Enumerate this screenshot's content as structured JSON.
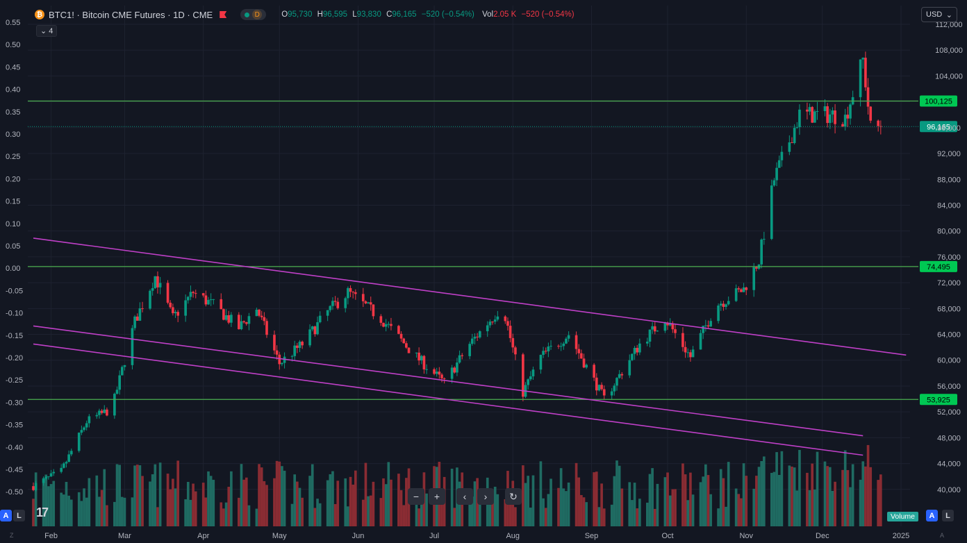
{
  "header": {
    "symbol": "BTC1! · Bitcoin CME Futures · 1D · CME",
    "interval_badge": "D",
    "ohlc": {
      "o_key": "O",
      "o": "95,730",
      "h_key": "H",
      "h": "96,595",
      "l_key": "L",
      "l": "93,830",
      "c_key": "C",
      "c": "96,165",
      "change": "−520 (−0.54%)"
    },
    "vol_key": "Vol",
    "vol": "2.05 K",
    "vol_change": "−520 (−0.54%)",
    "collapse_label": "4",
    "currency": "USD"
  },
  "bottom": {
    "tv_logo": "17",
    "volume_badge": "Volume",
    "a_label": "A",
    "l_label": "L",
    "z_label": "Z"
  },
  "colors": {
    "bg": "#131722",
    "up": "#089981",
    "down": "#f23645",
    "grid": "#1e2230",
    "hline": "#4caf50",
    "channel": "#c040c8"
  },
  "chart_data": {
    "type": "candlestick",
    "symbol": "BTC1!",
    "right_axis": {
      "ticks": [
        40000,
        44000,
        48000,
        52000,
        56000,
        60000,
        64000,
        68000,
        72000,
        76000,
        80000,
        84000,
        88000,
        92000,
        96000,
        100000,
        104000,
        108000,
        112000
      ],
      "labels": [
        "40,000",
        "44,000",
        "48,000",
        "52,000",
        "56,000",
        "60,000",
        "64,000",
        "68,000",
        "72,000",
        "76,000",
        "80,000",
        "84,000",
        "88,000",
        "92,000",
        "96,000",
        "",
        "104,000",
        "108,000",
        "112,000"
      ]
    },
    "left_axis": {
      "labels": [
        "0.55",
        "0.50",
        "0.45",
        "0.40",
        "0.35",
        "0.30",
        "0.25",
        "0.20",
        "0.15",
        "0.10",
        "0.05",
        "0.00",
        "-0.05",
        "-0.10",
        "-0.15",
        "-0.20",
        "-0.25",
        "-0.30",
        "-0.35",
        "-0.40",
        "-0.45",
        "-0.50"
      ]
    },
    "x_axis": {
      "labels": [
        "Feb",
        "Mar",
        "Apr",
        "May",
        "Jun",
        "Jul",
        "Aug",
        "Sep",
        "Oct",
        "Nov",
        "Dec",
        "2025"
      ]
    },
    "horizontal_levels": [
      {
        "value": 100125,
        "label": "100,125"
      },
      {
        "value": 74495,
        "label": "74,495"
      },
      {
        "value": 53925,
        "label": "53,925"
      }
    ],
    "last_price": {
      "value": 96165,
      "label": "96,165"
    },
    "channel_lines": [
      {
        "from": [
          "2024-01-25",
          78900
        ],
        "to": [
          "2025-01-03",
          60800
        ]
      },
      {
        "from": [
          "2024-01-25",
          65300
        ],
        "to": [
          "2024-12-17",
          48300
        ]
      },
      {
        "from": [
          "2024-01-25",
          62500
        ],
        "to": [
          "2024-12-17",
          45300
        ]
      }
    ],
    "closes_keypoints": [
      [
        "2024-01-25",
        40500
      ],
      [
        "2024-02-05",
        42800
      ],
      [
        "2024-02-15",
        50500
      ],
      [
        "2024-02-25",
        52500
      ],
      [
        "2024-03-05",
        66000
      ],
      [
        "2024-03-13",
        73000
      ],
      [
        "2024-03-20",
        66500
      ],
      [
        "2024-03-28",
        70500
      ],
      [
        "2024-04-05",
        68500
      ],
      [
        "2024-04-15",
        65000
      ],
      [
        "2024-04-22",
        68000
      ],
      [
        "2024-05-01",
        59500
      ],
      [
        "2024-05-10",
        62500
      ],
      [
        "2024-05-20",
        67500
      ],
      [
        "2024-05-28",
        70500
      ],
      [
        "2024-06-10",
        66500
      ],
      [
        "2024-06-24",
        60500
      ],
      [
        "2024-07-05",
        56500
      ],
      [
        "2024-07-15",
        62500
      ],
      [
        "2024-07-28",
        68500
      ],
      [
        "2024-08-05",
        55000
      ],
      [
        "2024-08-12",
        60500
      ],
      [
        "2024-08-23",
        64000
      ],
      [
        "2024-09-06",
        54000
      ],
      [
        "2024-09-20",
        62500
      ],
      [
        "2024-09-30",
        66500
      ],
      [
        "2024-10-10",
        60500
      ],
      [
        "2024-10-20",
        68500
      ],
      [
        "2024-10-31",
        71000
      ],
      [
        "2024-11-06",
        75500
      ],
      [
        "2024-11-12",
        88000
      ],
      [
        "2024-11-22",
        98000
      ],
      [
        "2024-12-05",
        98000
      ],
      [
        "2024-12-10",
        97500
      ],
      [
        "2024-12-17",
        106500
      ],
      [
        "2024-12-20",
        96000
      ],
      [
        "2024-12-24",
        96165
      ]
    ]
  }
}
